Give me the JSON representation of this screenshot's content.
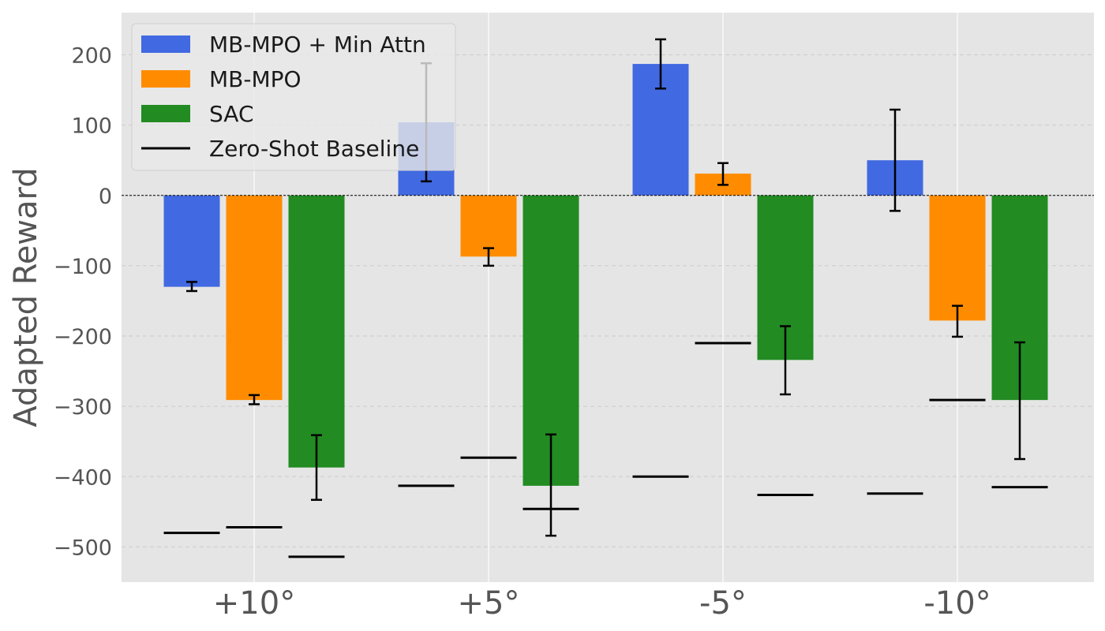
{
  "chart_data": {
    "type": "bar",
    "title": "",
    "xlabel": "",
    "ylabel": "Adapted Reward",
    "ylim": [
      -550,
      260
    ],
    "yticks": [
      200,
      100,
      0,
      -100,
      -200,
      -300,
      -400,
      -500
    ],
    "ytick_labels": [
      "200",
      "100",
      "0",
      "−100",
      "−200",
      "−300",
      "−400",
      "−500"
    ],
    "categories": [
      "+10°",
      "+5°",
      "-5°",
      "-10°"
    ],
    "grid": true,
    "legend_position": "top-left",
    "series": [
      {
        "name": "MB-MPO + Min Attn",
        "color": "#4169E1",
        "values": [
          -130,
          104,
          187,
          50
        ],
        "err_low": [
          -136,
          20,
          152,
          -22
        ],
        "err_high": [
          -123,
          188,
          222,
          122
        ],
        "baseline": [
          -480,
          -413,
          -400,
          -424
        ]
      },
      {
        "name": "MB-MPO",
        "color": "#FF8C00",
        "values": [
          -291,
          -87,
          31,
          -178
        ],
        "err_low": [
          -297,
          -100,
          15,
          -201
        ],
        "err_high": [
          -284,
          -75,
          46,
          -157
        ],
        "baseline": [
          -472,
          -373,
          -210,
          -291
        ]
      },
      {
        "name": "SAC",
        "color": "#228B22",
        "values": [
          -387,
          -413,
          -234,
          -291
        ],
        "err_low": [
          -433,
          -484,
          -283,
          -375
        ],
        "err_high": [
          -341,
          -340,
          -186,
          -209
        ],
        "baseline": [
          -514,
          -446,
          -426,
          -415
        ]
      }
    ],
    "legend": [
      {
        "label": "MB-MPO + Min Attn",
        "kind": "patch",
        "color": "#4169E1"
      },
      {
        "label": "MB-MPO",
        "kind": "patch",
        "color": "#FF8C00"
      },
      {
        "label": "SAC",
        "kind": "patch",
        "color": "#228B22"
      },
      {
        "label": "Zero-Shot Baseline",
        "kind": "line",
        "color": "#000000"
      }
    ],
    "zero_line": true
  }
}
